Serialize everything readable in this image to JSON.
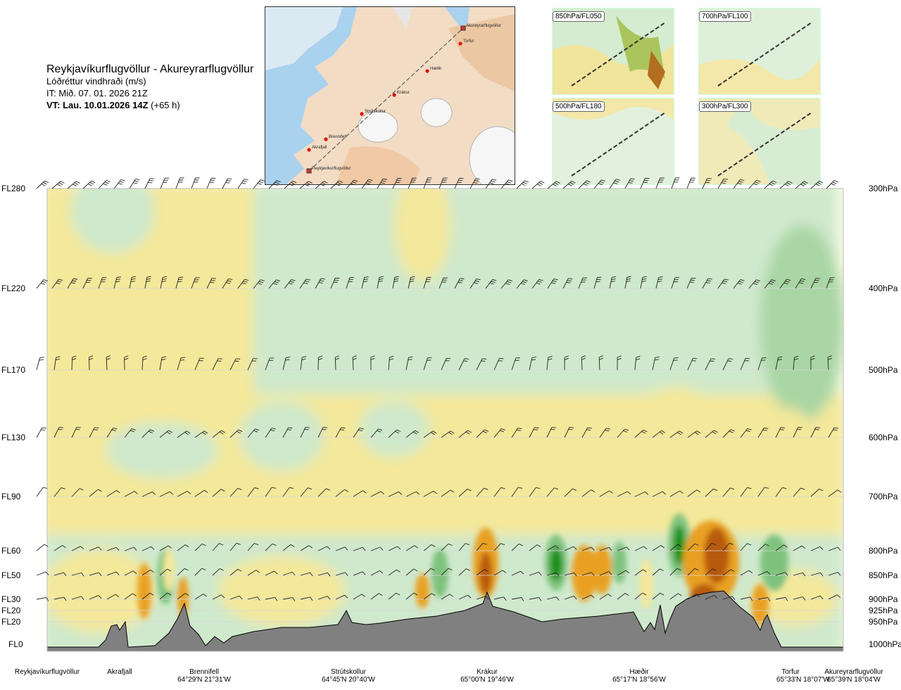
{
  "header": {
    "route": "Reykjavíkurflugvöllur - Akureyrarflugvöllur",
    "variable": "Lóðréttur vindhraði (m/s)",
    "issue_time": "IT: Mið. 07. 01. 2026 21Z",
    "valid_time_bold": "VT: Lau. 10.01.2026 14Z",
    "valid_offset": "(+65 h)"
  },
  "map": {
    "waypoints": [
      "Akureyrarflugvöllur",
      "Torfur",
      "Hæðir",
      "Krákur",
      "Strútskollur",
      "Brennifell",
      "Akrafjall",
      "Reykjavíkurflugvöllur"
    ]
  },
  "panels": [
    {
      "label": "850hPa/FL050"
    },
    {
      "label": "700hPa/FL100"
    },
    {
      "label": "500hPa/FL180"
    },
    {
      "label": "300hPa/FL300"
    }
  ],
  "chart_data": {
    "type": "heatmap",
    "y_left_labels": [
      "FL280",
      "FL220",
      "FL170",
      "FL130",
      "FL90",
      "FL60",
      "FL50",
      "FL30",
      "FL20",
      "FL20",
      "FL0"
    ],
    "y_right_labels": [
      "300hPa",
      "400hPa",
      "500hPa",
      "600hPa",
      "700hPa",
      "800hPa",
      "850hPa",
      "900hPa",
      "925hPa",
      "950hPa",
      "1000hPa"
    ],
    "pressure_levels_hPa": [
      300,
      400,
      500,
      600,
      700,
      800,
      850,
      900,
      925,
      950,
      1000
    ],
    "stations": [
      {
        "name": "Reykjavíkurflugvöllur",
        "coord": ""
      },
      {
        "name": "Akrafjall",
        "coord": ""
      },
      {
        "name": "Brennifell",
        "coord": "64°29'N 21°31'W"
      },
      {
        "name": "Strútskollur",
        "coord": "64°45'N 20°40'W"
      },
      {
        "name": "Krákur",
        "coord": "65°00'N 19°46'W"
      },
      {
        "name": "Hæðir",
        "coord": "65°17'N 18°56'W"
      },
      {
        "name": "Torfur",
        "coord": "65°33'N 18°07'W"
      },
      {
        "name": "Akureyrarflugvöllur",
        "coord": "65°39'N 18°04'W"
      }
    ],
    "colors": {
      "strong_down": "#b85a10",
      "down": "#e9a020",
      "weak_down": "#f4e89a",
      "neutral": "#fdfbe6",
      "weak_up": "#cfe9cc",
      "up": "#7fc27e",
      "strong_up": "#139013",
      "terrain": "#808080"
    }
  }
}
